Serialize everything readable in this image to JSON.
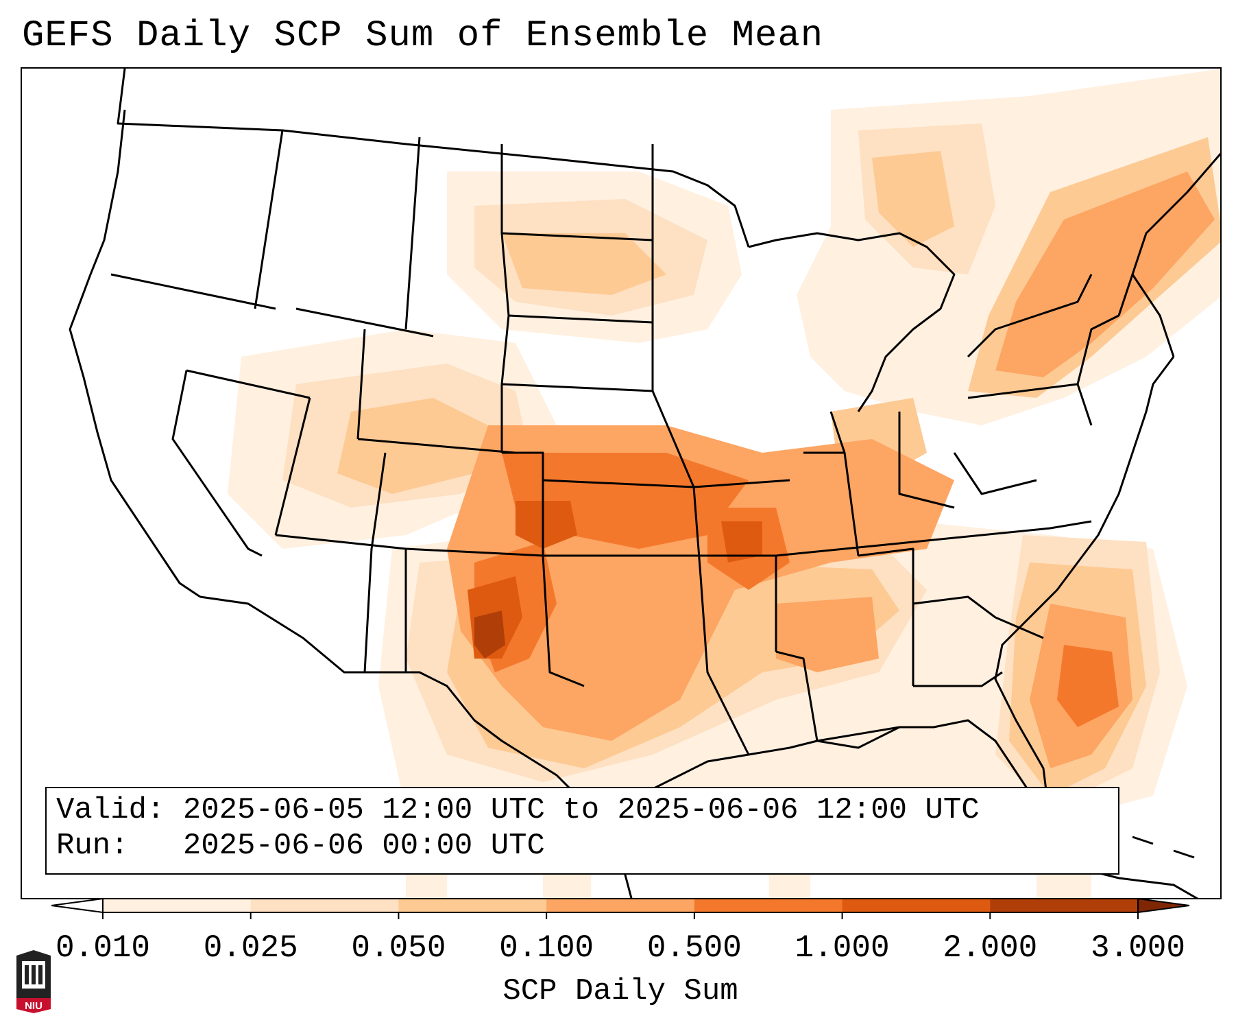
{
  "title": "GEFS Daily SCP Sum of Ensemble Mean",
  "info": {
    "valid_label": "Valid:",
    "valid_value": "2025-06-05 12:00 UTC to 2025-06-06 12:00 UTC",
    "run_label": "Run:",
    "run_value": "2025-06-06 00:00 UTC"
  },
  "colorbar": {
    "label": "SCP Daily Sum",
    "ticks": [
      "0.010",
      "0.025",
      "0.050",
      "0.100",
      "0.500",
      "1.000",
      "2.000",
      "3.000"
    ],
    "colors": [
      "#fff0e0",
      "#fee0c2",
      "#fdca94",
      "#fda562",
      "#f4782c",
      "#de5a10",
      "#b03e08"
    ],
    "extend_min_color": "#ffffff",
    "extend_max_color": "#7f2704"
  },
  "logo": {
    "text": "NIU",
    "icon": "niu-university-logo",
    "color": "#c8102e"
  },
  "map": {
    "region": "Continental United States",
    "colors": {
      "border": "#000000",
      "level1": "#fff0e0",
      "level2": "#fee0c2",
      "level3": "#fdca94",
      "level4": "#fda562",
      "level5": "#f4782c",
      "level6": "#de5a10",
      "level7": "#b03e08"
    }
  }
}
